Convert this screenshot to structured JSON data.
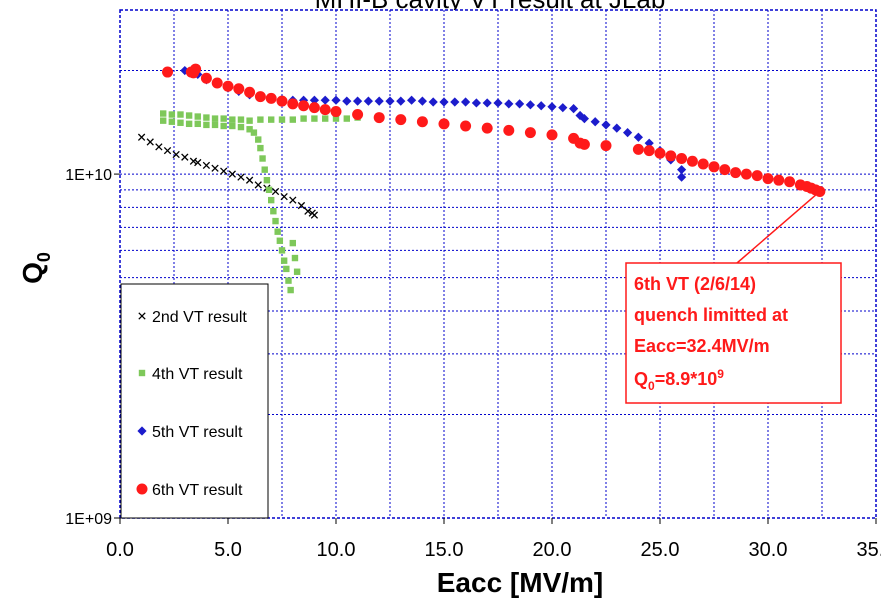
{
  "chart_data": {
    "type": "scatter",
    "title": "MHI-B cavity VT result at JLab",
    "xlabel": "Eacc [MV/m]",
    "ylabel_main": "Q",
    "ylabel_sub": "0",
    "xlim": [
      0,
      35
    ],
    "ylim": [
      1000000000.0,
      30000000000.0
    ],
    "yscale": "log",
    "grid": true,
    "x_ticks": [
      "0.0",
      "5.0",
      "10.0",
      "15.0",
      "20.0",
      "25.0",
      "30.0",
      "35.0"
    ],
    "y_tick_labels": [
      {
        "value": 1000000000.0,
        "label": "1E+09"
      },
      {
        "value": 10000000000.0,
        "label": "1E+10"
      }
    ],
    "legend_position": "left-bottom",
    "series": [
      {
        "name": "2nd VT result",
        "marker": "x",
        "color": "#000000",
        "points": [
          [
            1.0,
            12800000000.0
          ],
          [
            1.4,
            12400000000.0
          ],
          [
            1.8,
            12000000000.0
          ],
          [
            2.2,
            11700000000.0
          ],
          [
            2.6,
            11400000000.0
          ],
          [
            3.0,
            11200000000.0
          ],
          [
            3.4,
            10900000000.0
          ],
          [
            3.6,
            10800000000.0
          ],
          [
            4.0,
            10600000000.0
          ],
          [
            4.4,
            10400000000.0
          ],
          [
            4.8,
            10200000000.0
          ],
          [
            5.2,
            10000000000.0
          ],
          [
            5.6,
            9800000000.0
          ],
          [
            6.0,
            9600000000.0
          ],
          [
            6.4,
            9300000000.0
          ],
          [
            6.8,
            9100000000.0
          ],
          [
            7.2,
            8900000000.0
          ],
          [
            7.6,
            8600000000.0
          ],
          [
            8.0,
            8400000000.0
          ],
          [
            8.4,
            8100000000.0
          ],
          [
            8.7,
            7800000000.0
          ],
          [
            8.9,
            7700000000.0
          ],
          [
            9.0,
            7600000000.0
          ]
        ]
      },
      {
        "name": "4th VT result",
        "marker": "square",
        "color": "#7ec85a",
        "points": [
          [
            2.0,
            15000000000.0
          ],
          [
            2.4,
            14900000000.0
          ],
          [
            2.8,
            14900000000.0
          ],
          [
            3.2,
            14800000000.0
          ],
          [
            3.6,
            14700000000.0
          ],
          [
            4.0,
            14600000000.0
          ],
          [
            4.4,
            14500000000.0
          ],
          [
            4.8,
            14500000000.0
          ],
          [
            5.2,
            14400000000.0
          ],
          [
            5.6,
            14400000000.0
          ],
          [
            6.0,
            14300000000.0
          ],
          [
            2.0,
            14300000000.0
          ],
          [
            2.4,
            14200000000.0
          ],
          [
            2.8,
            14100000000.0
          ],
          [
            3.2,
            14000000000.0
          ],
          [
            3.6,
            14000000000.0
          ],
          [
            4.0,
            13900000000.0
          ],
          [
            4.4,
            13900000000.0
          ],
          [
            4.8,
            13800000000.0
          ],
          [
            5.2,
            13800000000.0
          ],
          [
            5.6,
            13700000000.0
          ],
          [
            6.0,
            13500000000.0
          ],
          [
            6.2,
            13200000000.0
          ],
          [
            6.4,
            12600000000.0
          ],
          [
            6.5,
            11900000000.0
          ],
          [
            6.6,
            11100000000.0
          ],
          [
            6.7,
            10300000000.0
          ],
          [
            6.8,
            9600000000.0
          ],
          [
            6.9,
            9000000000.0
          ],
          [
            7.0,
            8400000000.0
          ],
          [
            7.1,
            7800000000.0
          ],
          [
            7.2,
            7300000000.0
          ],
          [
            7.3,
            6800000000.0
          ],
          [
            7.4,
            6400000000.0
          ],
          [
            7.5,
            6000000000.0
          ],
          [
            7.6,
            5600000000.0
          ],
          [
            7.7,
            5300000000.0
          ],
          [
            7.8,
            4900000000.0
          ],
          [
            7.9,
            4600000000.0
          ],
          [
            8.0,
            6300000000.0
          ],
          [
            8.1,
            5700000000.0
          ],
          [
            8.2,
            5200000000.0
          ],
          [
            6.5,
            14400000000.0
          ],
          [
            7.0,
            14400000000.0
          ],
          [
            7.5,
            14400000000.0
          ],
          [
            8.0,
            14400000000.0
          ],
          [
            8.5,
            14500000000.0
          ],
          [
            9.0,
            14500000000.0
          ],
          [
            9.5,
            14500000000.0
          ],
          [
            10.0,
            14500000000.0
          ],
          [
            10.5,
            14500000000.0
          ],
          [
            11.0,
            14600000000.0
          ]
        ]
      },
      {
        "name": "5th VT result",
        "marker": "diamond",
        "color": "#1c1ccc",
        "points": [
          [
            3.0,
            20000000000.0
          ],
          [
            3.6,
            19500000000.0
          ],
          [
            4.0,
            18800000000.0
          ],
          [
            4.5,
            18300000000.0
          ],
          [
            5.0,
            17800000000.0
          ],
          [
            5.5,
            17400000000.0
          ],
          [
            6.0,
            17000000000.0
          ],
          [
            6.5,
            16800000000.0
          ],
          [
            7.0,
            16600000000.0
          ],
          [
            7.5,
            16500000000.0
          ],
          [
            8.0,
            16400000000.0
          ],
          [
            8.5,
            16400000000.0
          ],
          [
            9.0,
            16400000000.0
          ],
          [
            9.5,
            16400000000.0
          ],
          [
            10.0,
            16400000000.0
          ],
          [
            10.5,
            16300000000.0
          ],
          [
            11.0,
            16300000000.0
          ],
          [
            11.5,
            16300000000.0
          ],
          [
            12.0,
            16300000000.0
          ],
          [
            12.5,
            16300000000.0
          ],
          [
            13.0,
            16300000000.0
          ],
          [
            13.5,
            16400000000.0
          ],
          [
            14.0,
            16300000000.0
          ],
          [
            14.5,
            16200000000.0
          ],
          [
            15.0,
            16200000000.0
          ],
          [
            15.5,
            16200000000.0
          ],
          [
            16.0,
            16200000000.0
          ],
          [
            16.5,
            16100000000.0
          ],
          [
            17.0,
            16100000000.0
          ],
          [
            17.5,
            16100000000.0
          ],
          [
            18.0,
            16000000000.0
          ],
          [
            18.5,
            16000000000.0
          ],
          [
            19.0,
            15900000000.0
          ],
          [
            19.5,
            15800000000.0
          ],
          [
            20.0,
            15700000000.0
          ],
          [
            20.5,
            15600000000.0
          ],
          [
            21.0,
            15500000000.0
          ],
          [
            21.3,
            14800000000.0
          ],
          [
            21.5,
            14500000000.0
          ],
          [
            22.0,
            14200000000.0
          ],
          [
            22.5,
            13900000000.0
          ],
          [
            23.0,
            13600000000.0
          ],
          [
            23.5,
            13200000000.0
          ],
          [
            24.0,
            12800000000.0
          ],
          [
            24.5,
            12300000000.0
          ],
          [
            25.0,
            11700000000.0
          ],
          [
            25.5,
            11000000000.0
          ],
          [
            26.0,
            10300000000.0
          ],
          [
            26.0,
            9800000000.0
          ]
        ]
      },
      {
        "name": "6th VT result",
        "marker": "circle",
        "color": "#ff1a1a",
        "points": [
          [
            2.2,
            19800000000.0
          ],
          [
            3.3,
            19800000000.0
          ],
          [
            3.4,
            19700000000.0
          ],
          [
            3.5,
            20200000000.0
          ],
          [
            4.0,
            19000000000.0
          ],
          [
            4.5,
            18400000000.0
          ],
          [
            5.0,
            18000000000.0
          ],
          [
            5.5,
            17700000000.0
          ],
          [
            6.0,
            17300000000.0
          ],
          [
            6.5,
            16800000000.0
          ],
          [
            7.0,
            16600000000.0
          ],
          [
            7.5,
            16300000000.0
          ],
          [
            8.0,
            16000000000.0
          ],
          [
            8.5,
            15800000000.0
          ],
          [
            9.0,
            15600000000.0
          ],
          [
            9.5,
            15400000000.0
          ],
          [
            10.0,
            15200000000.0
          ],
          [
            11.0,
            14900000000.0
          ],
          [
            12.0,
            14600000000.0
          ],
          [
            13.0,
            14400000000.0
          ],
          [
            14.0,
            14200000000.0
          ],
          [
            15.0,
            14000000000.0
          ],
          [
            16.0,
            13800000000.0
          ],
          [
            17.0,
            13600000000.0
          ],
          [
            18.0,
            13400000000.0
          ],
          [
            19.0,
            13200000000.0
          ],
          [
            20.0,
            13000000000.0
          ],
          [
            21.0,
            12700000000.0
          ],
          [
            21.3,
            12300000000.0
          ],
          [
            21.5,
            12200000000.0
          ],
          [
            22.5,
            12100000000.0
          ],
          [
            24.0,
            11800000000.0
          ],
          [
            24.5,
            11700000000.0
          ],
          [
            25.0,
            11500000000.0
          ],
          [
            25.5,
            11300000000.0
          ],
          [
            26.0,
            11100000000.0
          ],
          [
            26.5,
            10900000000.0
          ],
          [
            27.0,
            10700000000.0
          ],
          [
            27.5,
            10500000000.0
          ],
          [
            28.0,
            10300000000.0
          ],
          [
            28.5,
            10100000000.0
          ],
          [
            29.0,
            10000000000.0
          ],
          [
            29.5,
            9900000000.0
          ],
          [
            30.0,
            9700000000.0
          ],
          [
            30.5,
            9600000000.0
          ],
          [
            31.0,
            9500000000.0
          ],
          [
            31.5,
            9300000000.0
          ],
          [
            31.8,
            9200000000.0
          ],
          [
            32.0,
            9100000000.0
          ],
          [
            32.2,
            9000000000.0
          ],
          [
            32.4,
            8900000000.0
          ]
        ]
      }
    ],
    "annotation": {
      "lines": [
        "6th VT (2/6/14)",
        "quench limitted at",
        "Eacc=32.4MV/m"
      ],
      "q_main": "Q",
      "q_sub": "0",
      "q_value": "=8.9*10",
      "q_exp": "9",
      "points_to": [
        32.4,
        8900000000.0
      ],
      "color": "#ff1a1a"
    }
  }
}
